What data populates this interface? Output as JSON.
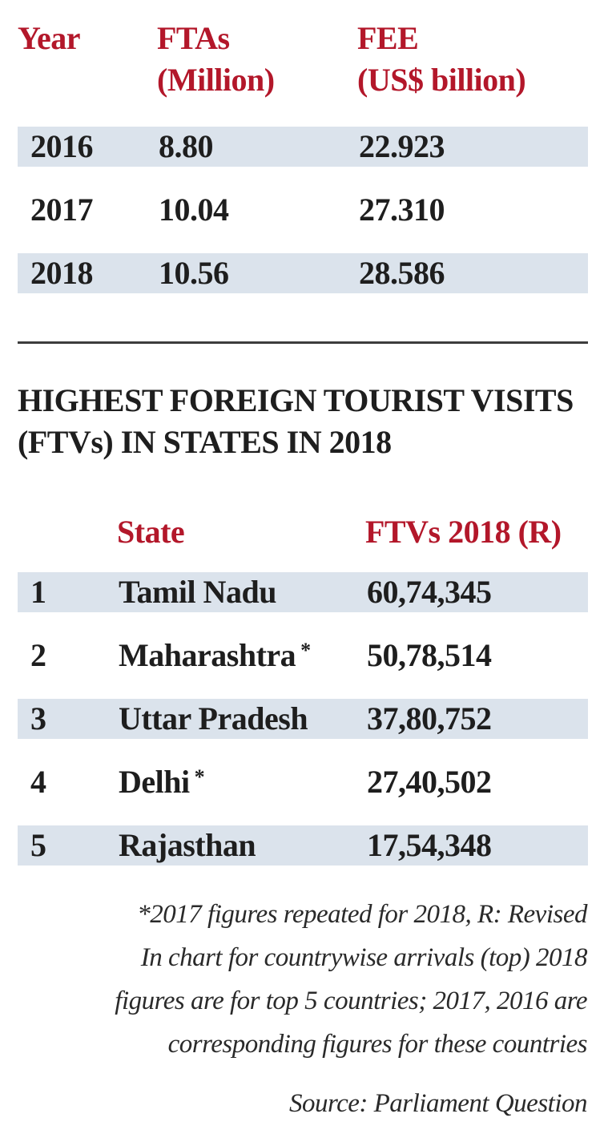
{
  "chart_data": [
    {
      "type": "table",
      "columns": [
        "Year",
        "FTAs\n(Million)",
        "FEE\n(US$ billion)"
      ],
      "header": [
        {
          "line1": "Year",
          "line2": ""
        },
        {
          "line1": "FTAs",
          "line2": "(Million)"
        },
        {
          "line1": "FEE",
          "line2": "(US$ billion)"
        }
      ],
      "rows": [
        {
          "year": "2016",
          "ftas": "8.80",
          "fee": "22.923"
        },
        {
          "year": "2017",
          "ftas": "10.04",
          "fee": "27.310"
        },
        {
          "year": "2018",
          "ftas": "10.56",
          "fee": "28.586"
        }
      ]
    },
    {
      "type": "table",
      "title_line1": "HIGHEST FOREIGN TOURIST VISITS",
      "title_line2": "(FTVs) IN STATES IN 2018",
      "columns": [
        "",
        "State",
        "FTVs 2018 (R)"
      ],
      "rows": [
        {
          "rank": "1",
          "state": "Tamil Nadu",
          "mark": "",
          "ftvs": "60,74,345"
        },
        {
          "rank": "2",
          "state": "Maharashtra",
          "mark": "*",
          "ftvs": "50,78,514"
        },
        {
          "rank": "3",
          "state": "Uttar Pradesh",
          "mark": "",
          "ftvs": "37,80,752"
        },
        {
          "rank": "4",
          "state": "Delhi",
          "mark": "*",
          "ftvs": "27,40,502"
        },
        {
          "rank": "5",
          "state": "Rajasthan",
          "mark": "",
          "ftvs": "17,54,348"
        }
      ]
    }
  ],
  "footnote": [
    "*2017 figures repeated for 2018, R: Revised",
    "In chart for countrywise arrivals (top) 2018",
    "figures are for top 5 countries; 2017, 2016 are",
    "corresponding figures  for these countries"
  ],
  "source": "Source: Parliament Question",
  "colors": {
    "header_red": "#b3172a",
    "row_shade": "#dbe3ec",
    "text": "#1e1e1e"
  }
}
